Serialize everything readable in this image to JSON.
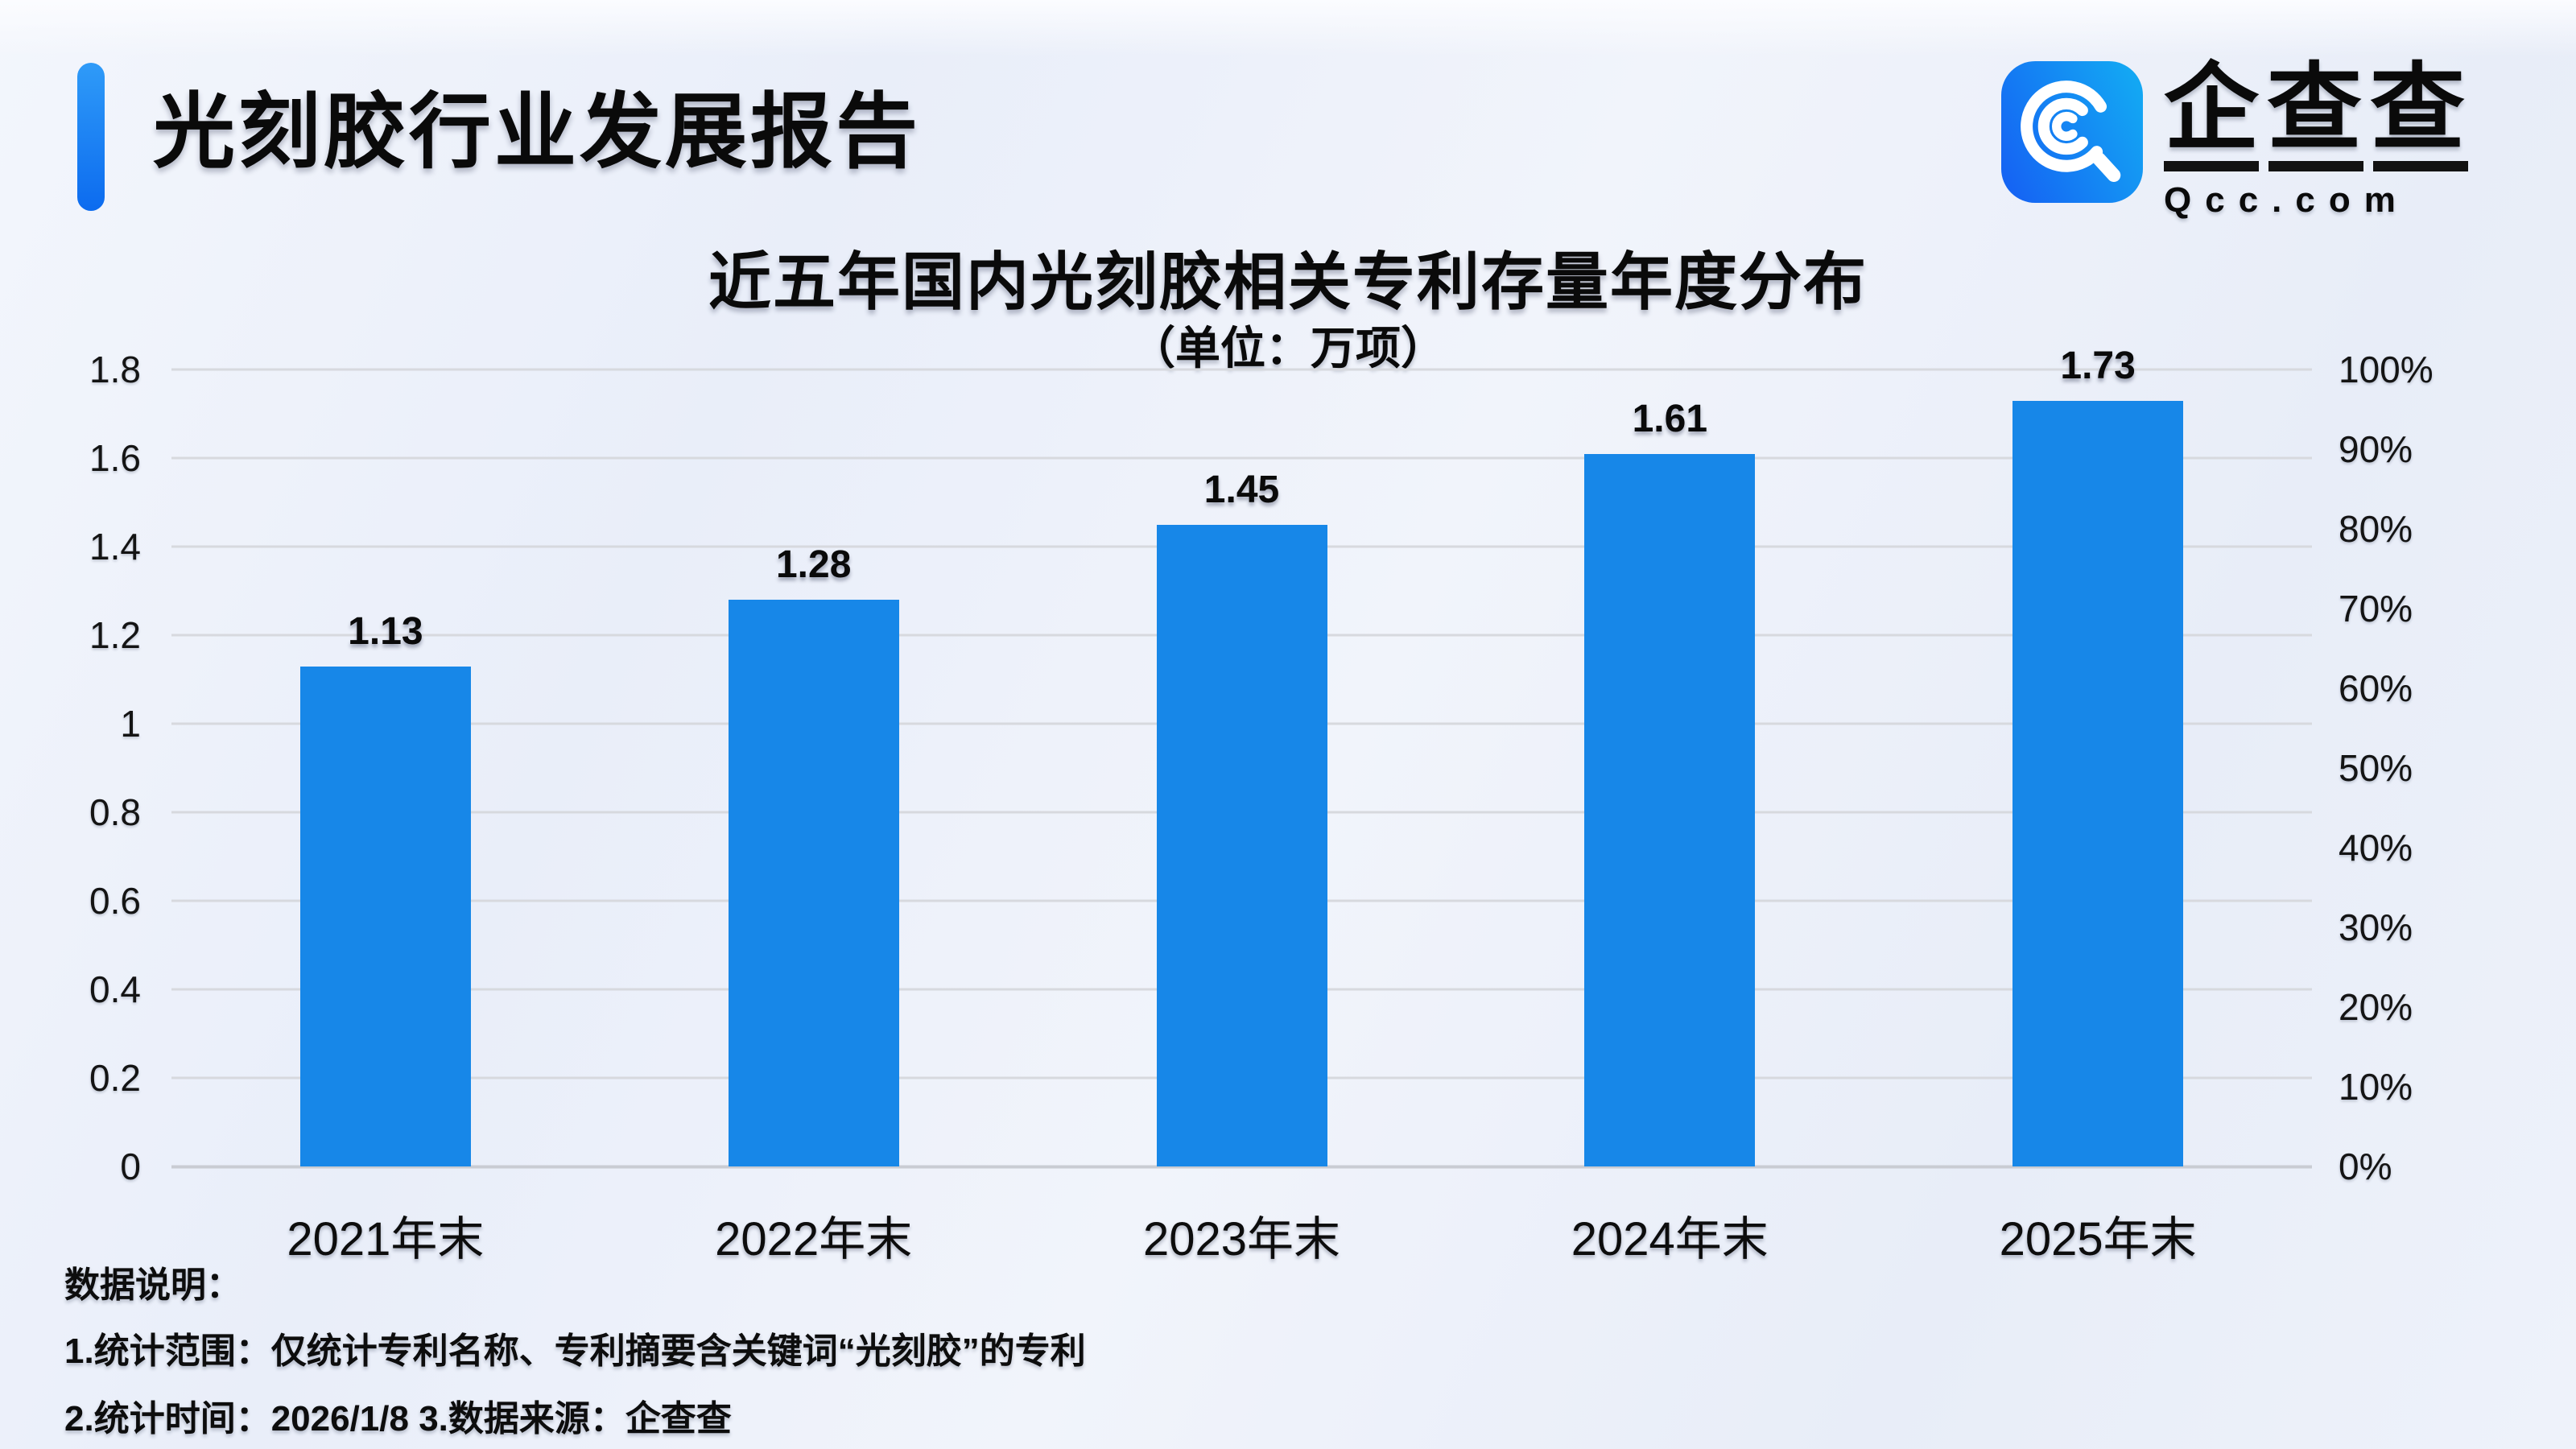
{
  "header": {
    "report_title": "光刻胶行业发展报告",
    "accent_color": "#0c6bef"
  },
  "logo": {
    "icon": "qcc-magnifier-icon",
    "brand_cn": "企查查",
    "brand_domain": "Qcc.com",
    "icon_gradient": [
      "#1565f3",
      "#13a7f3"
    ]
  },
  "chart_data": {
    "type": "bar",
    "title": "近五年国内光刻胶相关专利存量年度分布",
    "subtitle": "（单位：万项）",
    "unit": "万项",
    "categories": [
      "2021年末",
      "2022年末",
      "2023年末",
      "2024年末",
      "2025年末"
    ],
    "values": [
      1.13,
      1.28,
      1.45,
      1.61,
      1.73
    ],
    "value_labels": [
      "1.13",
      "1.28",
      "1.45",
      "1.61",
      "1.73"
    ],
    "bar_color": "#1787e8",
    "grid": true,
    "legend": false,
    "left_axis": {
      "min": 0,
      "max": 1.8,
      "ticks": [
        "1.8",
        "1.6",
        "1.4",
        "1.2",
        "1",
        "0.8",
        "0.6",
        "0.4",
        "0.2",
        "0"
      ]
    },
    "right_axis": {
      "min_label": "0%",
      "max_label": "100%",
      "ticks": [
        "100%",
        "90%",
        "80%",
        "70%",
        "60%",
        "50%",
        "40%",
        "30%",
        "20%",
        "10%",
        "0%"
      ]
    },
    "grid_color": "#d7d9de"
  },
  "footer": {
    "heading": "数据说明：",
    "note1": "1.统计范围：仅统计专利名称、专利摘要含关键词“光刻胶”的专利",
    "note2": "2.统计时间：2026/1/8 3.数据来源：企查查"
  }
}
